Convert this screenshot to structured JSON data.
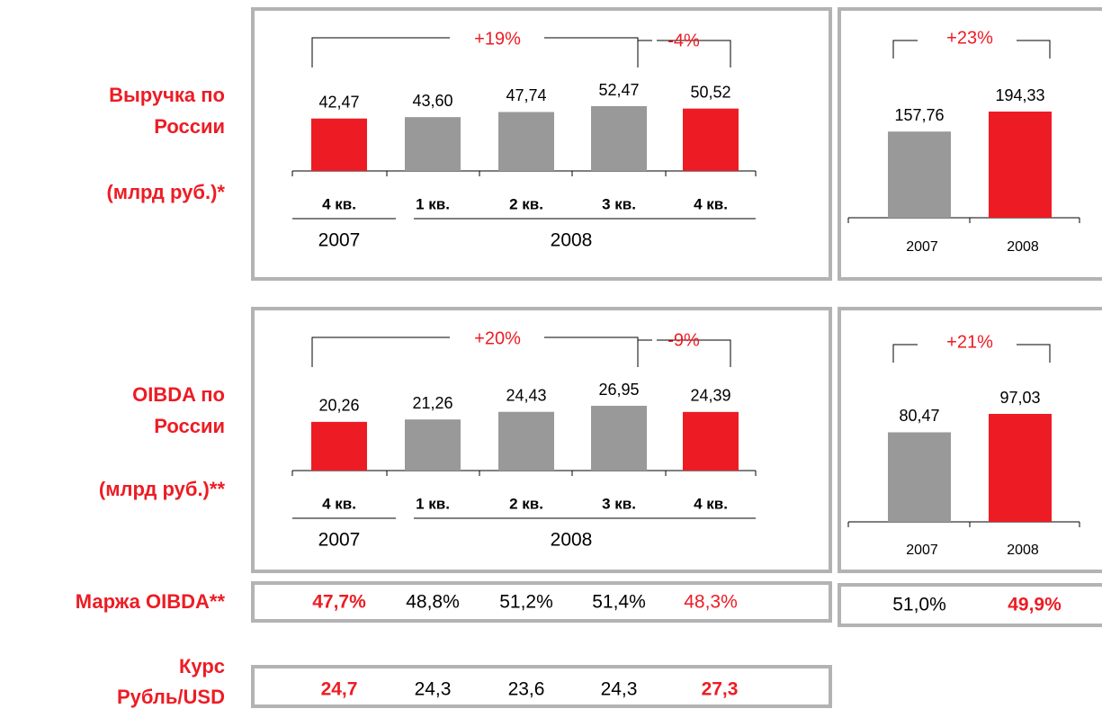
{
  "labels": {
    "revenue": [
      "Выручка по",
      "России",
      "(млрд руб.)*"
    ],
    "oibda": [
      "OIBDA по",
      "России",
      "(млрд руб.)**"
    ],
    "margin": "Маржа OIBDA**",
    "fx": [
      "Курс",
      "Рубль/USD"
    ]
  },
  "chart_data": [
    {
      "type": "bar",
      "categories": [
        "4 кв.",
        "1 кв.",
        "2 кв.",
        "3 кв.",
        "4 кв."
      ],
      "groups": [
        "2007",
        "2008"
      ],
      "values": [
        42.47,
        43.6,
        47.74,
        52.47,
        50.52
      ],
      "value_labels": [
        "42,47",
        "43,60",
        "47,74",
        "52,47",
        "50,52"
      ],
      "colors": [
        "#ed1c24",
        "#999999",
        "#999999",
        "#999999",
        "#ed1c24"
      ],
      "annotations": [
        "+19%",
        "-4%"
      ]
    },
    {
      "type": "bar",
      "categories": [
        "2007",
        "2008"
      ],
      "values": [
        157.76,
        194.33
      ],
      "value_labels": [
        "157,76",
        "194,33"
      ],
      "colors": [
        "#999999",
        "#ed1c24"
      ],
      "annotations": [
        "+23%"
      ]
    },
    {
      "type": "bar",
      "categories": [
        "4 кв.",
        "1 кв.",
        "2 кв.",
        "3 кв.",
        "4 кв."
      ],
      "groups": [
        "2007",
        "2008"
      ],
      "values": [
        20.26,
        21.26,
        24.43,
        26.95,
        24.39
      ],
      "value_labels": [
        "20,26",
        "21,26",
        "24,43",
        "26,95",
        "24,39"
      ],
      "colors": [
        "#ed1c24",
        "#999999",
        "#999999",
        "#999999",
        "#ed1c24"
      ],
      "annotations": [
        "+20%",
        "-9%"
      ]
    },
    {
      "type": "bar",
      "categories": [
        "2007",
        "2008"
      ],
      "values": [
        80.47,
        97.03
      ],
      "value_labels": [
        "80,47",
        "97,03"
      ],
      "colors": [
        "#999999",
        "#ed1c24"
      ],
      "annotations": [
        "+21%"
      ]
    }
  ],
  "margin": {
    "quarterly": [
      "47,7%",
      "48,8%",
      "51,2%",
      "51,4%",
      "48,3%"
    ],
    "annual": [
      "51,0%",
      "49,9%"
    ]
  },
  "fx": [
    "24,7",
    "24,3",
    "23,6",
    "24,3",
    "27,3"
  ]
}
